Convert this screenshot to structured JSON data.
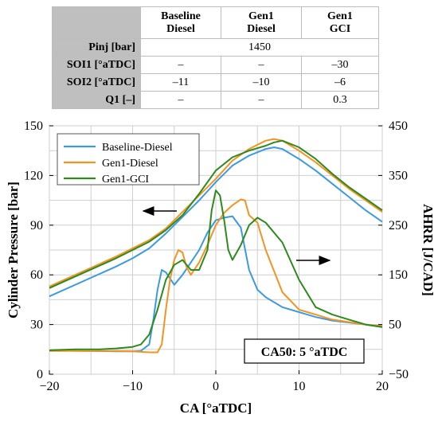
{
  "table": {
    "columns": [
      "Baseline\nDiesel",
      "Gen1\nDiesel",
      "Gen1\nGCI"
    ],
    "rows": [
      {
        "label": "Pinj [bar]",
        "merged": "1450"
      },
      {
        "label": "SOI1 [°aTDC]",
        "cells": [
          "–",
          "–",
          "–30"
        ]
      },
      {
        "label": "SOI2 [°aTDC]",
        "cells": [
          "–11",
          "–10",
          "–6"
        ]
      },
      {
        "label": "Q1 [–]",
        "cells": [
          "–",
          "–",
          "0.3"
        ]
      }
    ]
  },
  "chart_data": {
    "type": "line",
    "xlabel": "CA [°aTDC]",
    "ylabel_left": "Cylinder Pressure [bar]",
    "ylabel_right": "AHRR [J/CAD]",
    "xlim": [
      -20,
      20
    ],
    "ylim_left": [
      0,
      150
    ],
    "ylim_right": [
      -50,
      450
    ],
    "xticks": [
      -20,
      -10,
      0,
      10,
      20
    ],
    "yticks_left": [
      0,
      30,
      60,
      90,
      120,
      150
    ],
    "yticks_right": [
      -50,
      50,
      150,
      250,
      350,
      450
    ],
    "grid": true,
    "legend_position": "top-left",
    "annotation": "CA50: 5 °aTDC",
    "series": [
      {
        "name": "Baseline-Diesel",
        "color": "#3b9ae1",
        "axis": "left",
        "x": [
          -20,
          -16,
          -12,
          -10,
          -8,
          -6,
          -4,
          -2,
          0,
          2,
          4,
          6,
          7,
          8,
          10,
          12,
          14,
          16,
          18,
          20
        ],
        "y": [
          47,
          56,
          65,
          70,
          76,
          85,
          95,
          105,
          116,
          126,
          132,
          136,
          137,
          136,
          130,
          123,
          115,
          107,
          99,
          92
        ]
      },
      {
        "name": "Gen1-Diesel",
        "color": "#f39422",
        "axis": "left",
        "x": [
          -20,
          -16,
          -12,
          -10,
          -8,
          -6,
          -4,
          -2,
          0,
          2,
          4,
          6,
          7,
          8,
          10,
          12,
          14,
          16,
          18,
          20
        ],
        "y": [
          53,
          62,
          71,
          76,
          81,
          88,
          98,
          108,
          118,
          129,
          136,
          141,
          142,
          141,
          135,
          128,
          120,
          112,
          105,
          98
        ]
      },
      {
        "name": "Gen1-GCI",
        "color": "#2e8a1e",
        "axis": "left",
        "x": [
          -20,
          -16,
          -12,
          -10,
          -8,
          -6,
          -4,
          -2,
          0,
          2,
          4,
          6,
          7,
          8,
          10,
          12,
          14,
          16,
          18,
          20
        ],
        "y": [
          52,
          61,
          70,
          75,
          80,
          87,
          96,
          109,
          123,
          131,
          135,
          138,
          140,
          141,
          137,
          130,
          121,
          113,
          106,
          99
        ]
      },
      {
        "name": "Baseline-Diesel AHRR",
        "color": "#3b9ae1",
        "axis": "right",
        "x": [
          -20,
          -16,
          -12,
          -10,
          -9,
          -8,
          -7.5,
          -7,
          -6.5,
          -6,
          -5,
          -4,
          -3,
          -2,
          -1,
          0,
          1,
          2,
          3,
          4,
          5,
          6,
          8,
          10,
          12,
          14,
          16,
          18,
          20
        ],
        "y": [
          -2,
          -3,
          -4,
          -4,
          -3,
          10,
          60,
          120,
          160,
          155,
          130,
          150,
          175,
          200,
          235,
          260,
          265,
          268,
          245,
          160,
          120,
          105,
          85,
          75,
          65,
          58,
          54,
          50,
          45
        ]
      },
      {
        "name": "Gen1-Diesel AHRR",
        "color": "#f39422",
        "axis": "right",
        "x": [
          -20,
          -16,
          -12,
          -10,
          -8,
          -7,
          -6.5,
          -6,
          -5.5,
          -5,
          -4.5,
          -4,
          -3.5,
          -3,
          -2,
          -1,
          0,
          1,
          2,
          3,
          3.5,
          4,
          5,
          6,
          8,
          10,
          12,
          14,
          16,
          18,
          20
        ],
        "y": [
          -3,
          -3,
          -3,
          -4,
          -6,
          -6,
          10,
          80,
          140,
          180,
          200,
          195,
          165,
          150,
          175,
          210,
          250,
          275,
          290,
          302,
          300,
          270,
          255,
          200,
          115,
          80,
          70,
          60,
          55,
          50,
          47
        ]
      },
      {
        "name": "Gen1-GCI AHRR",
        "color": "#2e8a1e",
        "axis": "right",
        "x": [
          -20,
          -17,
          -14,
          -12,
          -10,
          -9,
          -8,
          -7,
          -6,
          -5,
          -4,
          -3,
          -2,
          -1,
          -0.5,
          0,
          0.5,
          1,
          1.5,
          2,
          3,
          4,
          5,
          6,
          8,
          10,
          12,
          14,
          16,
          18,
          20
        ],
        "y": [
          -2,
          0,
          0,
          2,
          5,
          10,
          30,
          80,
          140,
          170,
          180,
          160,
          160,
          200,
          280,
          320,
          310,
          260,
          200,
          180,
          210,
          250,
          265,
          255,
          215,
          140,
          85,
          70,
          60,
          50,
          45
        ]
      }
    ]
  }
}
